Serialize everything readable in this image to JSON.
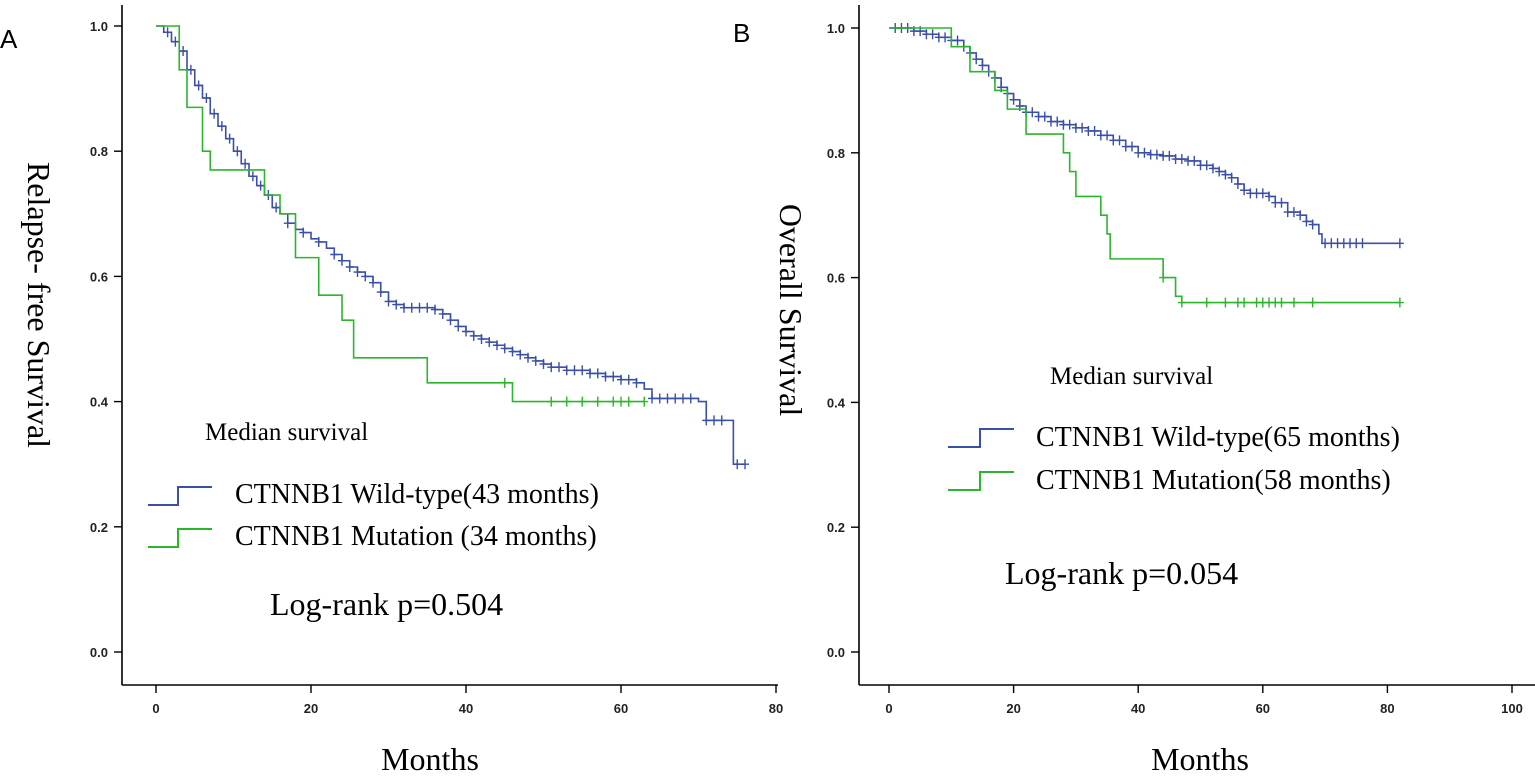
{
  "chart_data": [
    {
      "type": "line",
      "subtype": "kaplan-meier",
      "panel_label": "A",
      "xlabel": "Months",
      "ylabel": "Relapse- free Survival",
      "xlim": [
        0,
        80
      ],
      "ylim": [
        0,
        1.0
      ],
      "xticks": [
        "0",
        "20",
        "40",
        "60",
        "80"
      ],
      "yticks": [
        "0.0",
        "0.2",
        "0.4",
        "0.6",
        "0.8",
        "1.0"
      ],
      "legend_title": "Median survival",
      "annotation": "Log-rank p=0.504",
      "series": [
        {
          "name": "CTNNB1 Wild-type(43 months)",
          "color": "#3a4fa8",
          "steps": [
            [
              0,
              1.0
            ],
            [
              1,
              0.99
            ],
            [
              2,
              0.975
            ],
            [
              3,
              0.96
            ],
            [
              4,
              0.93
            ],
            [
              5,
              0.905
            ],
            [
              6,
              0.885
            ],
            [
              7,
              0.86
            ],
            [
              8,
              0.84
            ],
            [
              9,
              0.82
            ],
            [
              10,
              0.8
            ],
            [
              11,
              0.78
            ],
            [
              12,
              0.76
            ],
            [
              13,
              0.745
            ],
            [
              14,
              0.73
            ],
            [
              15,
              0.71
            ],
            [
              16,
              0.7
            ],
            [
              17,
              0.685
            ],
            [
              18,
              0.675
            ],
            [
              19,
              0.67
            ],
            [
              20,
              0.66
            ],
            [
              21,
              0.655
            ],
            [
              22,
              0.645
            ],
            [
              23,
              0.635
            ],
            [
              24,
              0.625
            ],
            [
              25,
              0.615
            ],
            [
              26,
              0.607
            ],
            [
              27,
              0.6
            ],
            [
              28,
              0.59
            ],
            [
              29,
              0.575
            ],
            [
              30,
              0.56
            ],
            [
              31,
              0.555
            ],
            [
              32,
              0.55
            ],
            [
              34,
              0.55
            ],
            [
              36,
              0.547
            ],
            [
              37,
              0.54
            ],
            [
              38,
              0.53
            ],
            [
              39,
              0.52
            ],
            [
              40,
              0.512
            ],
            [
              41,
              0.505
            ],
            [
              42,
              0.5
            ],
            [
              43,
              0.495
            ],
            [
              44,
              0.49
            ],
            [
              45,
              0.485
            ],
            [
              46,
              0.48
            ],
            [
              47,
              0.475
            ],
            [
              48,
              0.47
            ],
            [
              49,
              0.465
            ],
            [
              50,
              0.46
            ],
            [
              51,
              0.455
            ],
            [
              53,
              0.45
            ],
            [
              55,
              0.45
            ],
            [
              56,
              0.445
            ],
            [
              58,
              0.44
            ],
            [
              60,
              0.435
            ],
            [
              62,
              0.43
            ],
            [
              63,
              0.42
            ],
            [
              64,
              0.405
            ],
            [
              66,
              0.405
            ],
            [
              70,
              0.4
            ],
            [
              71,
              0.37
            ],
            [
              74,
              0.37
            ],
            [
              74.5,
              0.3
            ],
            [
              76,
              0.3
            ]
          ],
          "censor": [
            1.5,
            2.5,
            3.5,
            4.5,
            5.5,
            6.5,
            7.5,
            8.5,
            9.5,
            10.5,
            11.5,
            12.5,
            13.5,
            14.5,
            15.5,
            17,
            19,
            21,
            23,
            24,
            25,
            26,
            27,
            28,
            29,
            30,
            31,
            32,
            33,
            34,
            35,
            36,
            37,
            38,
            39,
            40,
            41,
            42,
            43,
            44,
            45,
            46,
            47,
            48,
            49,
            50,
            51,
            52,
            53,
            54,
            55,
            56,
            57,
            58,
            59,
            60,
            61,
            62,
            64,
            65,
            66,
            67,
            68,
            69,
            71,
            72,
            73,
            75,
            76
          ]
        },
        {
          "name": "CTNNB1 Mutation (34 months)",
          "color": "#2db52d",
          "steps": [
            [
              0,
              1.0
            ],
            [
              3,
              1.0
            ],
            [
              3,
              0.93
            ],
            [
              4,
              0.93
            ],
            [
              4,
              0.87
            ],
            [
              6,
              0.87
            ],
            [
              6,
              0.8
            ],
            [
              7,
              0.8
            ],
            [
              7,
              0.77
            ],
            [
              14,
              0.77
            ],
            [
              14,
              0.73
            ],
            [
              16,
              0.73
            ],
            [
              16,
              0.7
            ],
            [
              18,
              0.7
            ],
            [
              18,
              0.63
            ],
            [
              21,
              0.63
            ],
            [
              21,
              0.57
            ],
            [
              24,
              0.57
            ],
            [
              24,
              0.53
            ],
            [
              25.5,
              0.53
            ],
            [
              25.5,
              0.47
            ],
            [
              35,
              0.47
            ],
            [
              35,
              0.43
            ],
            [
              46,
              0.43
            ],
            [
              46,
              0.4
            ],
            [
              63,
              0.4
            ]
          ],
          "censor": [
            45,
            51,
            53,
            55,
            57,
            59,
            60,
            61,
            63
          ]
        }
      ]
    },
    {
      "type": "line",
      "subtype": "kaplan-meier",
      "panel_label": "B",
      "xlabel": "Months",
      "ylabel": "Overall Survival",
      "xlim": [
        0,
        100
      ],
      "ylim": [
        0,
        1.0
      ],
      "xticks": [
        "0",
        "20",
        "40",
        "60",
        "80",
        "100"
      ],
      "yticks": [
        "0.0",
        "0.2",
        "0.4",
        "0.6",
        "0.8",
        "1.0"
      ],
      "legend_title": "Median survival",
      "annotation": "Log-rank p=0.054",
      "series": [
        {
          "name": "CTNNB1 Wild-type(65 months)",
          "color": "#3a4fa8",
          "steps": [
            [
              0,
              1.0
            ],
            [
              2,
              1.0
            ],
            [
              4,
              0.995
            ],
            [
              6,
              0.99
            ],
            [
              8,
              0.985
            ],
            [
              10,
              0.98
            ],
            [
              12,
              0.97
            ],
            [
              13,
              0.96
            ],
            [
              14,
              0.95
            ],
            [
              15,
              0.94
            ],
            [
              16,
              0.93
            ],
            [
              17,
              0.92
            ],
            [
              18,
              0.905
            ],
            [
              19,
              0.895
            ],
            [
              20,
              0.885
            ],
            [
              21,
              0.875
            ],
            [
              22,
              0.865
            ],
            [
              24,
              0.858
            ],
            [
              26,
              0.85
            ],
            [
              28,
              0.845
            ],
            [
              30,
              0.84
            ],
            [
              32,
              0.835
            ],
            [
              34,
              0.828
            ],
            [
              36,
              0.82
            ],
            [
              38,
              0.81
            ],
            [
              40,
              0.8
            ],
            [
              42,
              0.797
            ],
            [
              44,
              0.795
            ],
            [
              46,
              0.79
            ],
            [
              48,
              0.787
            ],
            [
              50,
              0.78
            ],
            [
              52,
              0.775
            ],
            [
              53,
              0.77
            ],
            [
              54,
              0.765
            ],
            [
              55,
              0.76
            ],
            [
              56,
              0.75
            ],
            [
              57,
              0.74
            ],
            [
              58,
              0.735
            ],
            [
              60,
              0.735
            ],
            [
              61,
              0.73
            ],
            [
              62,
              0.72
            ],
            [
              64,
              0.705
            ],
            [
              66,
              0.7
            ],
            [
              67,
              0.69
            ],
            [
              68,
              0.685
            ],
            [
              69,
              0.67
            ],
            [
              69.5,
              0.655
            ],
            [
              82,
              0.655
            ]
          ],
          "censor": [
            1,
            2,
            3,
            4,
            5,
            6,
            7,
            8,
            9,
            10,
            11,
            12,
            13,
            14,
            15,
            16,
            17,
            18,
            19,
            20,
            21,
            22,
            23,
            24,
            25,
            26,
            27,
            28,
            29,
            30,
            31,
            32,
            33,
            34,
            35,
            36,
            37,
            38,
            39,
            40,
            41,
            42,
            43,
            44,
            45,
            46,
            47,
            48,
            49,
            50,
            51,
            52,
            53,
            54,
            55,
            56,
            57,
            58,
            59,
            60,
            61,
            62,
            63,
            64,
            65,
            66,
            67,
            68,
            70,
            71,
            72,
            73,
            74,
            75,
            76,
            82
          ]
        },
        {
          "name": "CTNNB1 Mutation(58 months)",
          "color": "#2db52d",
          "steps": [
            [
              0,
              1.0
            ],
            [
              10,
              1.0
            ],
            [
              10,
              0.97
            ],
            [
              13,
              0.97
            ],
            [
              13,
              0.93
            ],
            [
              17,
              0.93
            ],
            [
              17,
              0.9
            ],
            [
              19,
              0.9
            ],
            [
              19,
              0.87
            ],
            [
              22,
              0.87
            ],
            [
              22,
              0.83
            ],
            [
              28,
              0.83
            ],
            [
              28,
              0.8
            ],
            [
              29,
              0.8
            ],
            [
              29,
              0.77
            ],
            [
              30,
              0.77
            ],
            [
              30,
              0.73
            ],
            [
              34,
              0.73
            ],
            [
              34,
              0.7
            ],
            [
              35,
              0.7
            ],
            [
              35,
              0.67
            ],
            [
              35.5,
              0.67
            ],
            [
              35.5,
              0.63
            ],
            [
              44,
              0.63
            ],
            [
              44,
              0.6
            ],
            [
              46,
              0.6
            ],
            [
              46,
              0.57
            ],
            [
              47,
              0.57
            ],
            [
              47,
              0.56
            ],
            [
              82,
              0.56
            ]
          ],
          "censor": [
            44,
            47,
            51,
            54,
            56,
            57,
            59,
            60,
            61,
            62,
            63,
            65,
            68,
            82
          ]
        }
      ]
    }
  ]
}
